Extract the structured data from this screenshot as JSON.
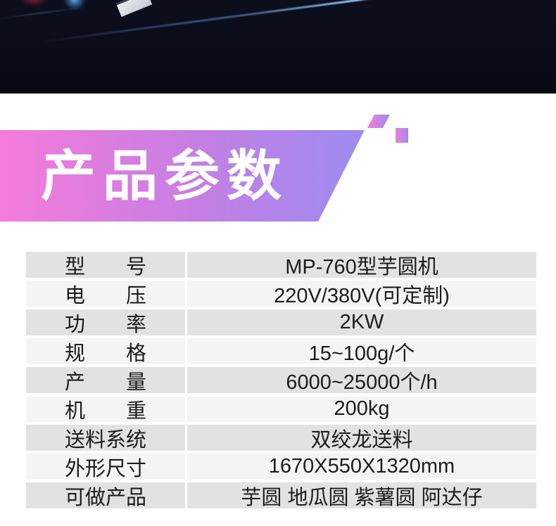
{
  "banner": {
    "title": "产品参数",
    "gradient_left": "#f57bd9",
    "gradient_right": "#9c8bef",
    "text_color": "#ffffff"
  },
  "hero": {
    "background_color": "#0b0c17",
    "streak_color": "#6aa8e8",
    "glow_blue": "#78bef5",
    "glow_red": "#b02447"
  },
  "spec_table": {
    "row_color_odd": "#e2e2e2",
    "row_color_even": "#f4f4f4",
    "text_color": "#1c1c1c",
    "rows": [
      {
        "label": "型　　号",
        "value": "MP-760型芋圆机"
      },
      {
        "label": "电　　压",
        "value": "220V/380V(可定制)"
      },
      {
        "label": "功　　率",
        "value": "2KW"
      },
      {
        "label": "规　　格",
        "value": "15~100g/个"
      },
      {
        "label": "产　　量",
        "value": "6000~25000个/h"
      },
      {
        "label": "机　　重",
        "value": "200kg"
      },
      {
        "label": "送料系统",
        "value": "双绞龙送料"
      },
      {
        "label": "外形尺寸",
        "value": "1670X550X1320mm"
      },
      {
        "label": "可做产品",
        "value": "芋圆 地瓜圆 紫薯圆 阿达仔"
      }
    ]
  }
}
